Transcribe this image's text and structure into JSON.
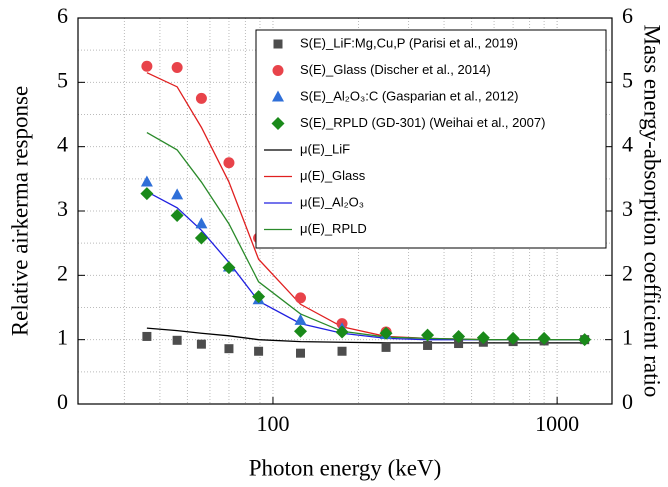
{
  "chart_data": {
    "type": "scatter",
    "x_label": "Photon energy (keV)",
    "y_label": "Relative airkerma response",
    "y2_label": "Mass energy-absorption coefficient ratio",
    "x": [
      36,
      46,
      56,
      70,
      89,
      125,
      175,
      250,
      350,
      450,
      550,
      700,
      900,
      1250
    ],
    "xlim": [
      20.6,
      1560
    ],
    "xticks": [
      100,
      1000
    ],
    "xlog": true,
    "ylim": [
      0,
      6
    ],
    "yticks": [
      0,
      1,
      2,
      3,
      4,
      5,
      6
    ],
    "y2lim": [
      0,
      6
    ],
    "y2ticks": [
      0,
      1,
      2,
      3,
      4,
      5,
      6
    ],
    "grid": true,
    "legend": "upper right",
    "series": [
      {
        "name": "S(E)_LiF:Mg,Cu,P (Parisi et al., 2019)",
        "kind": "scatter",
        "marker": "square",
        "color": "#4d4d4d",
        "values": [
          1.05,
          0.99,
          0.93,
          0.86,
          0.82,
          0.79,
          0.82,
          0.88,
          0.91,
          0.94,
          0.96,
          0.97,
          0.98,
          1.0
        ]
      },
      {
        "name": "S(E)_Glass (Discher et al., 2014)",
        "kind": "scatter",
        "marker": "circle",
        "color": "#e8434a",
        "values": [
          5.25,
          5.23,
          4.75,
          3.75,
          2.58,
          1.65,
          1.25,
          1.12,
          null,
          null,
          null,
          null,
          null,
          null
        ]
      },
      {
        "name": "S(E)_Al₂O₃:C (Gasparian et al., 2012)",
        "kind": "scatter",
        "marker": "triangle",
        "color": "#2f6fd8",
        "values": [
          3.45,
          3.25,
          2.8,
          2.13,
          1.62,
          1.3,
          1.17,
          1.08,
          null,
          null,
          null,
          null,
          null,
          null
        ]
      },
      {
        "name": "S(E)_RPLD (GD-301) (Weihai et al., 2007)",
        "kind": "scatter",
        "marker": "diamond",
        "color": "#1a8a1a",
        "values": [
          3.27,
          2.93,
          2.58,
          2.12,
          1.67,
          1.13,
          1.12,
          1.1,
          1.07,
          1.05,
          1.03,
          1.02,
          1.02,
          1.0
        ]
      },
      {
        "name": "μ(E)_LiF",
        "kind": "line",
        "axis": "y2",
        "color": "#000000",
        "values": [
          1.18,
          1.14,
          1.1,
          1.06,
          1.0,
          0.97,
          0.96,
          0.95,
          0.95,
          0.95,
          0.95,
          0.95,
          0.95,
          0.95
        ]
      },
      {
        "name": "μ(E)_Glass",
        "kind": "line",
        "axis": "y2",
        "color": "#e02020",
        "values": [
          5.15,
          4.93,
          4.3,
          3.45,
          2.25,
          1.55,
          1.2,
          1.05,
          1.02,
          1.01,
          1.0,
          1.0,
          1.0,
          1.0
        ]
      },
      {
        "name": "μ(E)_Al₂O₃",
        "kind": "line",
        "axis": "y2",
        "color": "#2020e0",
        "values": [
          3.3,
          3.05,
          2.7,
          2.2,
          1.6,
          1.25,
          1.1,
          1.02,
          1.0,
          1.0,
          1.0,
          1.0,
          1.0,
          1.0
        ]
      },
      {
        "name": "μ(E)_RPLD",
        "kind": "line",
        "axis": "y2",
        "color": "#2a8a2a",
        "values": [
          4.22,
          3.95,
          3.45,
          2.8,
          1.9,
          1.4,
          1.13,
          1.04,
          1.02,
          1.01,
          1.0,
          1.0,
          1.0,
          1.0
        ]
      }
    ]
  }
}
